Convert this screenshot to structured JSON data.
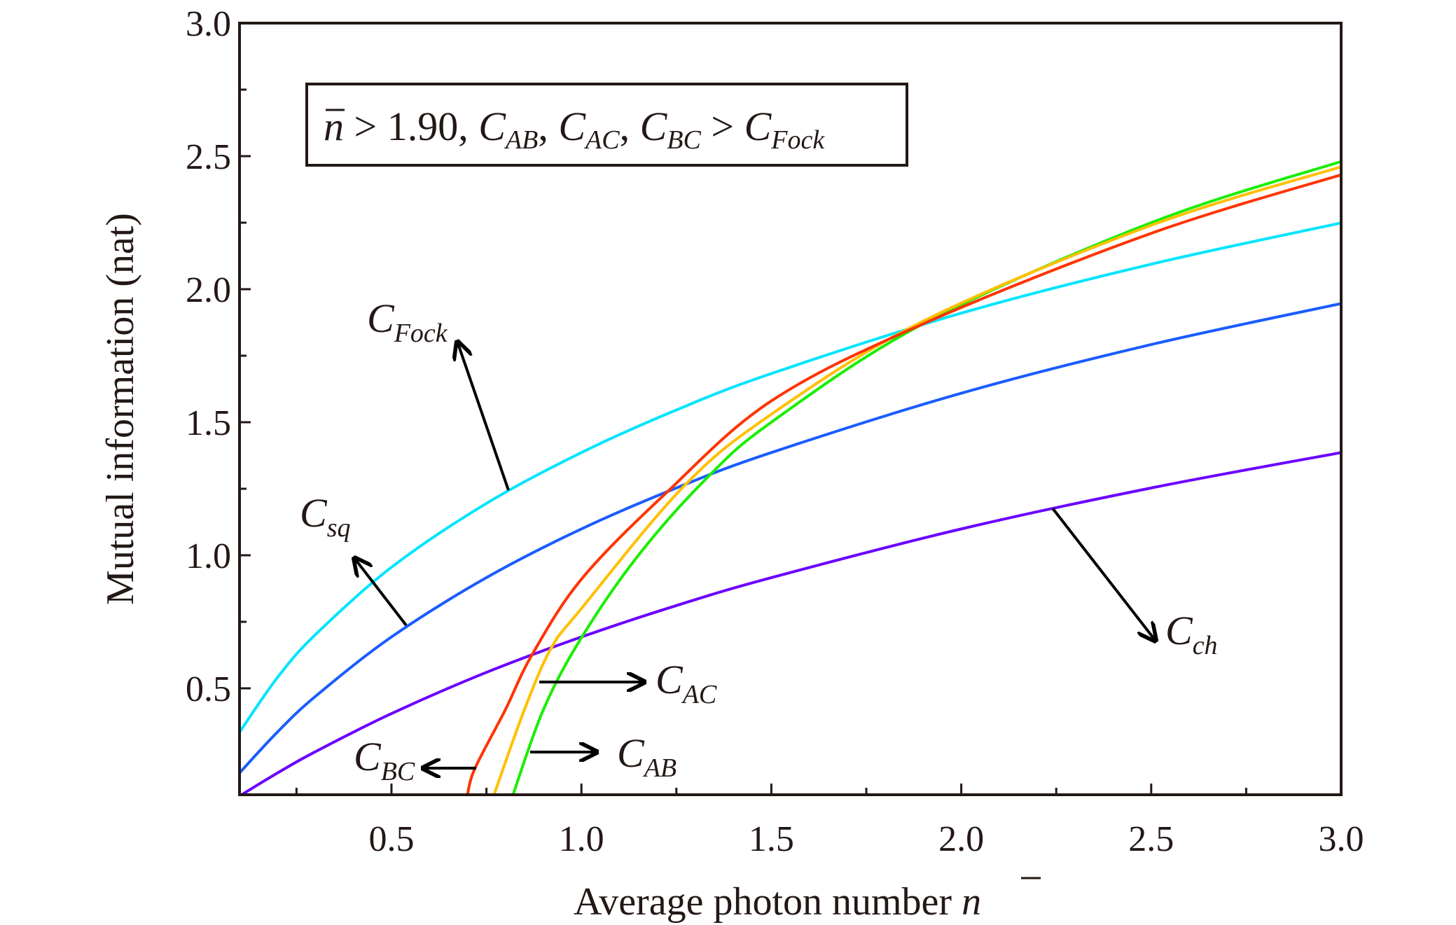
{
  "chart_data": {
    "type": "line",
    "xlabel": "Average photon number",
    "xlabel_symbol": "n",
    "ylabel": "Mutual information (nat)",
    "xlim": [
      0.1,
      3.0
    ],
    "ylim": [
      0.1,
      3.0
    ],
    "xticks": [
      "0.5",
      "1.0",
      "1.5",
      "2.0",
      "2.5",
      "3.0"
    ],
    "xtick_values": [
      0.5,
      1.0,
      1.5,
      2.0,
      2.5,
      3.0
    ],
    "yticks": [
      "0.5",
      "1.0",
      "1.5",
      "2.0",
      "2.5",
      "3.0"
    ],
    "ytick_values": [
      0.5,
      1.0,
      1.5,
      2.0,
      2.5,
      3.0
    ],
    "grid": false,
    "annotation": {
      "n": "n",
      "gt1": " > 1.90, ",
      "c": "C",
      "ab": "AB",
      "sep": ", ",
      "ac": "AC",
      "bc": "BC",
      "gt2": " > ",
      "fock": "Fock"
    },
    "series": [
      {
        "name": "C_Fock",
        "main": "C",
        "sub": "Fock",
        "color": "#00e5ff",
        "x": [
          0.1,
          0.2,
          0.3,
          0.5,
          0.75,
          1.0,
          1.25,
          1.5,
          2.0,
          2.5,
          3.0
        ],
        "y": [
          0.335,
          0.541,
          0.702,
          0.955,
          1.195,
          1.386,
          1.546,
          1.683,
          1.91,
          2.094,
          2.249
        ]
      },
      {
        "name": "C_sq",
        "main": "C",
        "sub": "sq",
        "color": "#1a5cff",
        "x": [
          0.1,
          0.2,
          0.3,
          0.5,
          0.75,
          1.0,
          1.25,
          1.5,
          2.0,
          2.5,
          3.0
        ],
        "y": [
          0.182,
          0.336,
          0.47,
          0.693,
          0.916,
          1.099,
          1.253,
          1.386,
          1.609,
          1.792,
          1.946
        ]
      },
      {
        "name": "C_ch",
        "main": "C",
        "sub": "ch",
        "color": "#6a00ff",
        "x": [
          0.1,
          0.2,
          0.3,
          0.5,
          0.75,
          1.0,
          1.25,
          1.5,
          2.0,
          2.5,
          3.0
        ],
        "y": [
          0.095,
          0.182,
          0.262,
          0.405,
          0.56,
          0.693,
          0.811,
          0.916,
          1.099,
          1.253,
          1.386
        ]
      },
      {
        "name": "C_AB",
        "main": "C",
        "sub": "AB",
        "color": "#1aee00",
        "x": [
          0.82,
          0.9,
          1.0,
          1.15,
          1.33,
          1.5,
          1.9,
          2.5,
          3.0
        ],
        "y": [
          0.1,
          0.42,
          0.69,
          1.0,
          1.29,
          1.5,
          1.87,
          2.25,
          2.48
        ]
      },
      {
        "name": "C_AC",
        "main": "C",
        "sub": "AC",
        "color": "#ffc000",
        "x": [
          0.77,
          0.85,
          0.92,
          1.0,
          1.27,
          1.5,
          1.9,
          2.5,
          3.0
        ],
        "y": [
          0.1,
          0.42,
          0.65,
          0.8,
          1.26,
          1.53,
          1.88,
          2.24,
          2.46
        ]
      },
      {
        "name": "C_BC",
        "main": "C",
        "sub": "BC",
        "color": "#ff3300",
        "x": [
          0.7,
          0.72,
          0.8,
          0.87,
          1.0,
          1.22,
          1.5,
          1.9,
          2.5,
          3.0
        ],
        "y": [
          0.1,
          0.2,
          0.42,
          0.626,
          0.91,
          1.23,
          1.58,
          1.87,
          2.21,
          2.43
        ]
      }
    ]
  }
}
